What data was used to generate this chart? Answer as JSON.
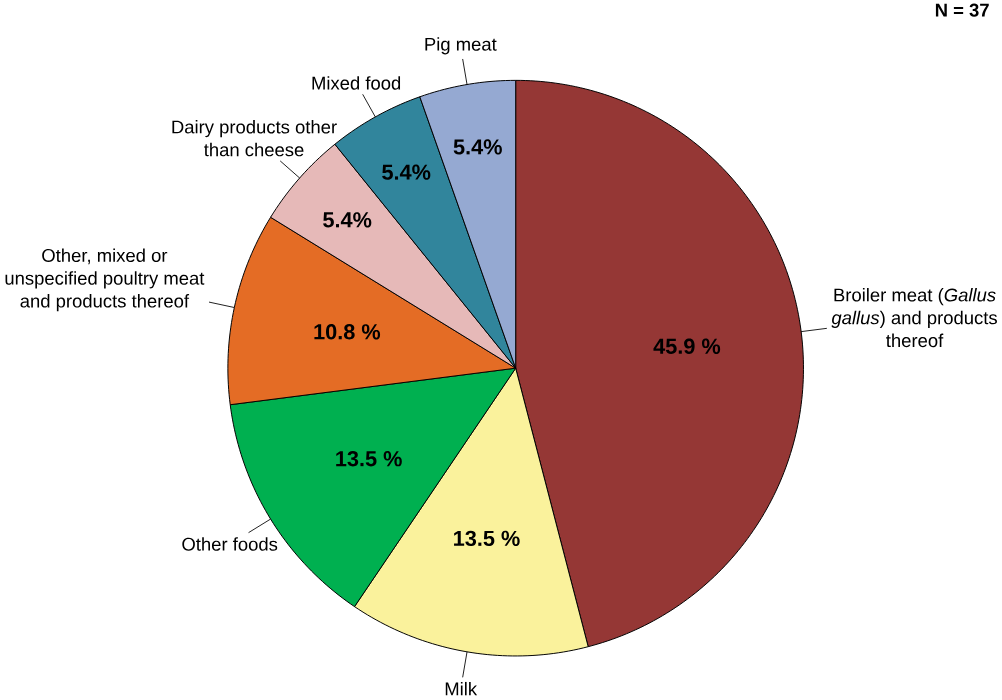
{
  "chart_data": {
    "type": "pie",
    "categories": [
      "Broiler meat (*Gallus gallus*) and products thereof",
      "Milk",
      "Other foods",
      "Other, mixed or unspecified poultry meat and products thereof",
      "Dairy products other than cheese",
      "Mixed food",
      "Pig meat"
    ],
    "values": [
      45.9,
      13.5,
      13.5,
      10.8,
      5.4,
      5.4,
      5.4
    ],
    "colors": [
      "#953735",
      "#faf29c",
      "#00b050",
      "#e46c25",
      "#e6b9b8",
      "#31859c",
      "#95a9d2"
    ],
    "value_labels": [
      "45.9 %",
      "13.5 %",
      "13.5 %",
      "10.8 %",
      "5.4%",
      "5.4%",
      "5.4%"
    ],
    "annotations": [
      "N = 37"
    ]
  }
}
